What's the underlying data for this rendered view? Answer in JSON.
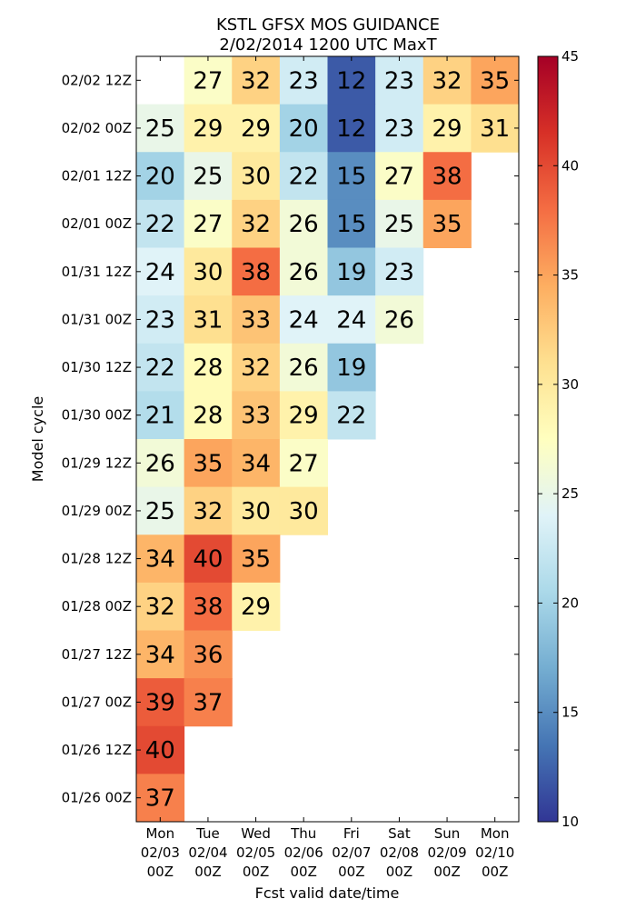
{
  "chart_data": {
    "type": "heatmap",
    "title": "KSTL GFSX MOS GUIDANCE",
    "subtitle": "2/02/2014 1200 UTC MaxT",
    "xlabel": "Fcst valid date/time",
    "ylabel": "Model cycle",
    "x_categories": [
      {
        "day": "Mon",
        "date": "02/03",
        "time": "00Z"
      },
      {
        "day": "Tue",
        "date": "02/04",
        "time": "00Z"
      },
      {
        "day": "Wed",
        "date": "02/05",
        "time": "00Z"
      },
      {
        "day": "Thu",
        "date": "02/06",
        "time": "00Z"
      },
      {
        "day": "Fri",
        "date": "02/07",
        "time": "00Z"
      },
      {
        "day": "Sat",
        "date": "02/08",
        "time": "00Z"
      },
      {
        "day": "Sun",
        "date": "02/09",
        "time": "00Z"
      },
      {
        "day": "Mon",
        "date": "02/10",
        "time": "00Z"
      }
    ],
    "y_categories": [
      "02/02 12Z",
      "02/02 00Z",
      "02/01 12Z",
      "02/01 00Z",
      "01/31 12Z",
      "01/31 00Z",
      "01/30 12Z",
      "01/30 00Z",
      "01/29 12Z",
      "01/29 00Z",
      "01/28 12Z",
      "01/28 00Z",
      "01/27 12Z",
      "01/27 00Z",
      "01/26 12Z",
      "01/26 00Z"
    ],
    "values": [
      [
        null,
        27,
        32,
        23,
        12,
        23,
        32,
        35
      ],
      [
        25,
        29,
        29,
        20,
        12,
        23,
        29,
        31
      ],
      [
        20,
        25,
        30,
        22,
        15,
        27,
        38,
        null
      ],
      [
        22,
        27,
        32,
        26,
        15,
        25,
        35,
        null
      ],
      [
        24,
        30,
        38,
        26,
        19,
        23,
        null,
        null
      ],
      [
        23,
        31,
        33,
        24,
        24,
        26,
        null,
        null
      ],
      [
        22,
        28,
        32,
        26,
        19,
        null,
        null,
        null
      ],
      [
        21,
        28,
        33,
        29,
        22,
        null,
        null,
        null
      ],
      [
        26,
        35,
        34,
        27,
        null,
        null,
        null,
        null
      ],
      [
        25,
        32,
        30,
        30,
        null,
        null,
        null,
        null
      ],
      [
        34,
        40,
        35,
        null,
        null,
        null,
        null,
        null
      ],
      [
        32,
        38,
        29,
        null,
        null,
        null,
        null,
        null
      ],
      [
        34,
        36,
        null,
        null,
        null,
        null,
        null,
        null
      ],
      [
        39,
        37,
        null,
        null,
        null,
        null,
        null,
        null
      ],
      [
        40,
        null,
        null,
        null,
        null,
        null,
        null,
        null
      ],
      [
        37,
        null,
        null,
        null,
        null,
        null,
        null,
        null
      ]
    ],
    "colorbar": {
      "min": 10,
      "max": 45,
      "ticks": [
        10,
        15,
        20,
        25,
        30,
        35,
        40,
        45
      ],
      "colormap": "RdYlBu_r"
    }
  }
}
